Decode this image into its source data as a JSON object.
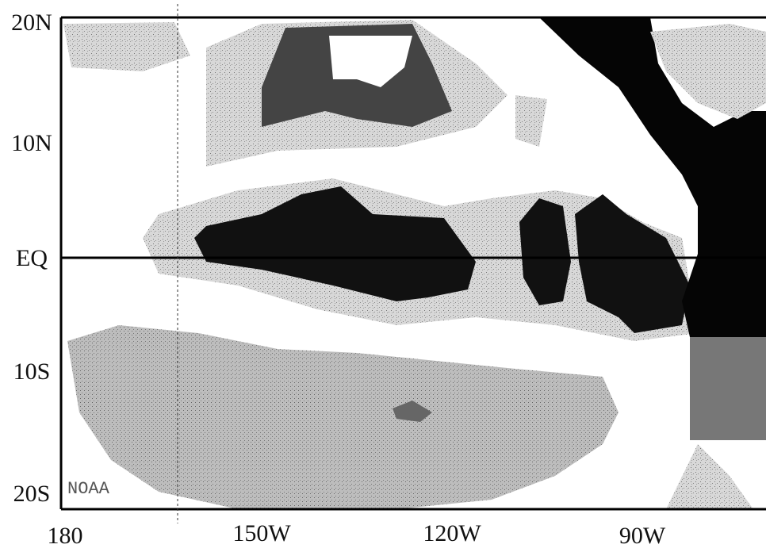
{
  "map": {
    "latitude_labels": [
      "20N",
      "10N",
      "EQ",
      "10S",
      "20S"
    ],
    "longitude_labels": [
      "180",
      "150W",
      "120W",
      "90W"
    ],
    "credit": "NOAA"
  }
}
